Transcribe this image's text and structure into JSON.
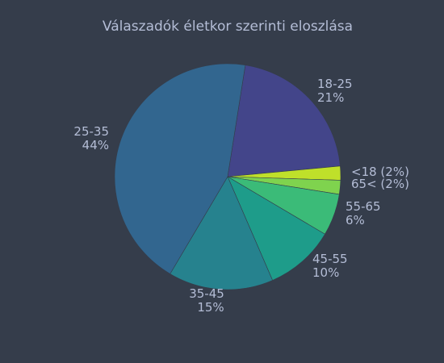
{
  "chart_data": {
    "type": "pie",
    "title": "Válaszadók életkor szerinti eloszlása",
    "slices": [
      {
        "label": "18-25",
        "value": 21,
        "pct_text": "21%",
        "color": "#43458a"
      },
      {
        "label": "<18 (2%)",
        "value": 2,
        "pct_text": "",
        "color": "#bfe02a"
      },
      {
        "label": "65< (2%)",
        "value": 2,
        "pct_text": "",
        "color": "#7fd34e"
      },
      {
        "label": "55-65",
        "value": 6,
        "pct_text": "6%",
        "color": "#3bbb78"
      },
      {
        "label": "45-55",
        "value": 10,
        "pct_text": "10%",
        "color": "#1e9c8a"
      },
      {
        "label": "35-45",
        "value": 15,
        "pct_text": "15%",
        "color": "#26828e"
      },
      {
        "label": "25-35",
        "value": 44,
        "pct_text": "44%",
        "color": "#32668f"
      }
    ],
    "legend": "none"
  }
}
